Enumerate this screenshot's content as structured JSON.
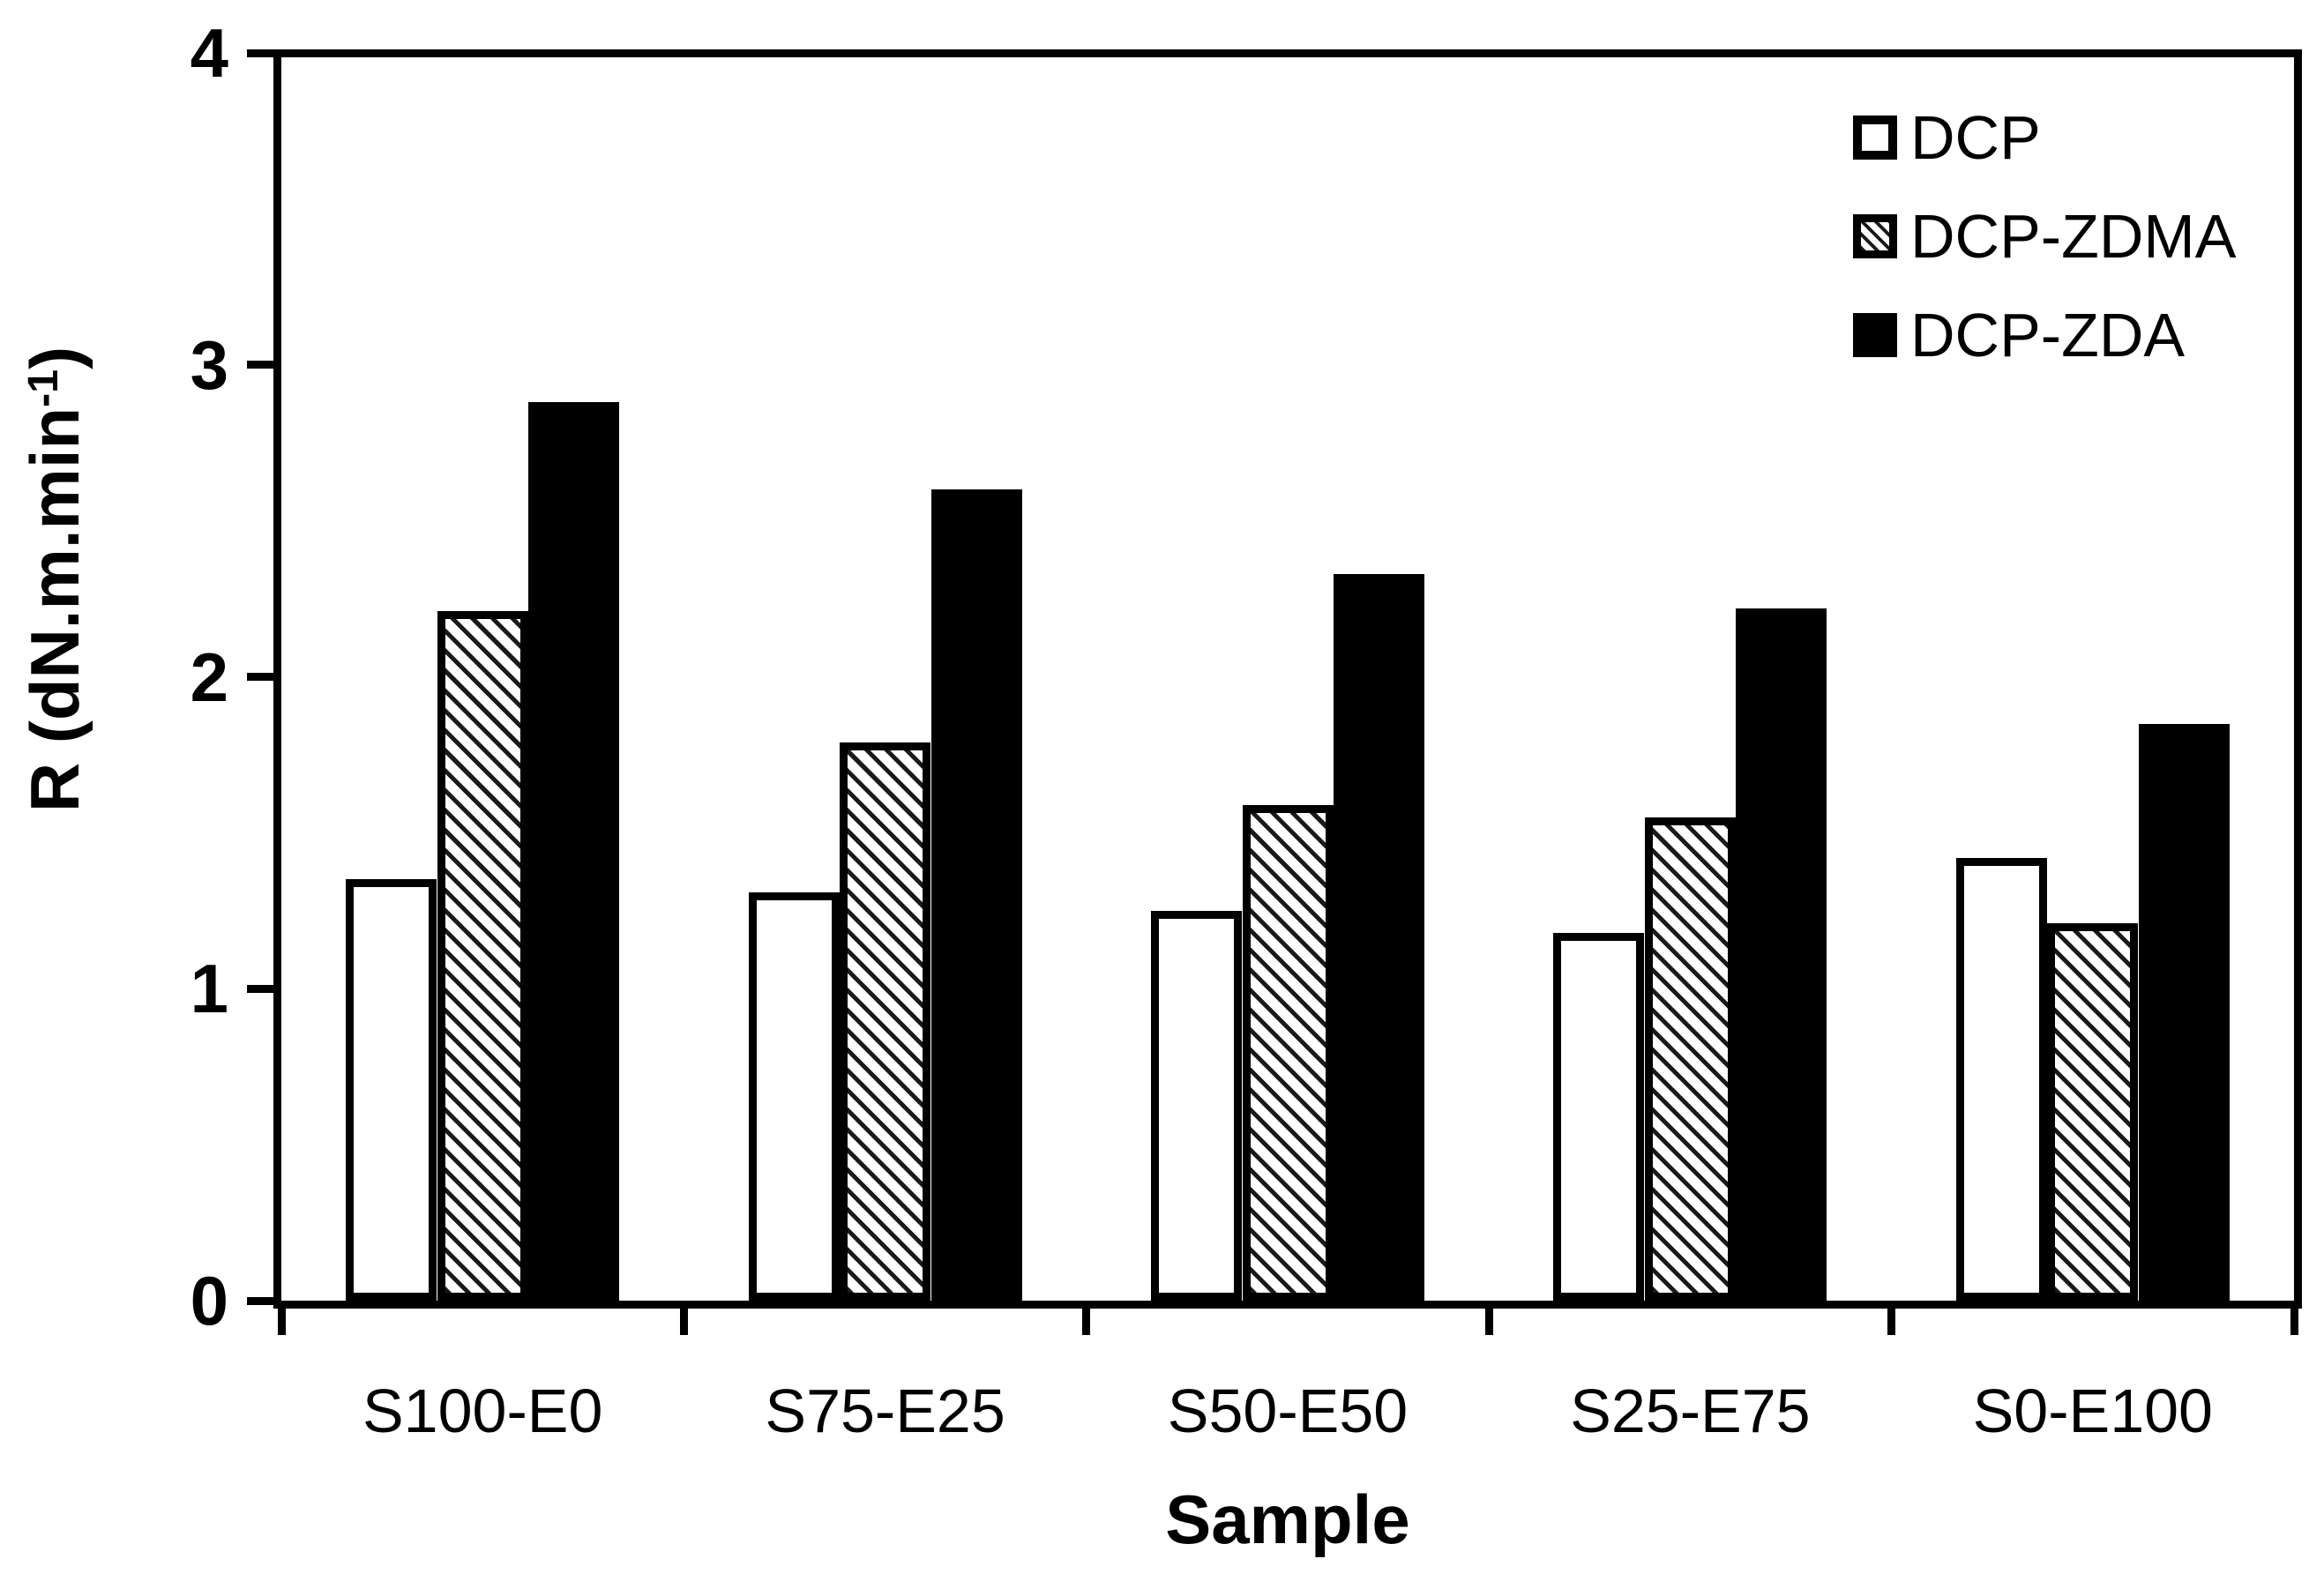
{
  "figure": {
    "x_axis_title": "Sample",
    "y_axis_title_prefix": "R (dN.m.min",
    "y_axis_title_superscript": "-1",
    "y_axis_title_suffix": ")",
    "colors": {
      "foreground": "#000000",
      "background": "#ffffff",
      "hatch_stroke": "#1a1a1a"
    }
  },
  "chart_data": {
    "type": "bar",
    "title": "",
    "xlabel": "Sample",
    "ylabel": "R (dN.m.min-1)",
    "ylim": [
      0,
      4
    ],
    "yticks": [
      0,
      1,
      2,
      3,
      4
    ],
    "grid": false,
    "legend_position": "top-right",
    "categories": [
      "S100-E0",
      "S75-E25",
      "S50-E50",
      "S25-E75",
      "S0-E100"
    ],
    "series": [
      {
        "name": "DCP",
        "style": "white",
        "values": [
          1.35,
          1.31,
          1.25,
          1.18,
          1.42
        ]
      },
      {
        "name": "DCP-ZDMA",
        "style": "hatched",
        "values": [
          2.21,
          1.79,
          1.59,
          1.55,
          1.21
        ]
      },
      {
        "name": "DCP-ZDA",
        "style": "black",
        "values": [
          2.88,
          2.6,
          2.33,
          2.22,
          1.85
        ]
      }
    ]
  }
}
